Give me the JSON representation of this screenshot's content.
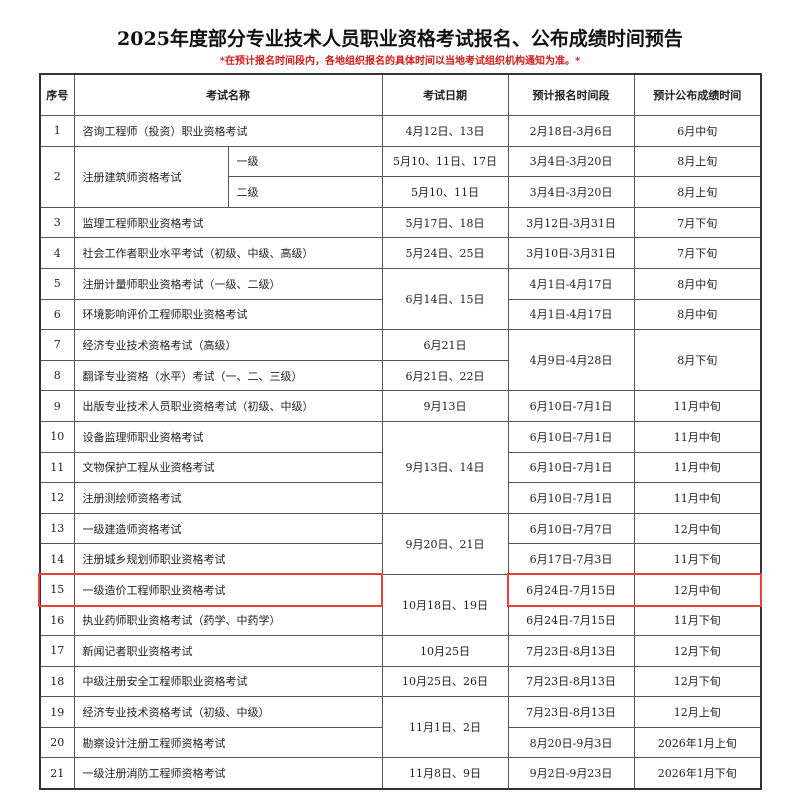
{
  "title": "2025年度部分专业技术人员职业资格考试报名、公布成绩时间预告",
  "note": "*在预计报名时间段内，各地组织报名的具体时间以当地考试组织机构通知为准。*",
  "highlight_color": "#e8403a",
  "headers": {
    "no": "序号",
    "name": "考试名称",
    "date": "考试日期",
    "reg": "预计报名时间段",
    "result": "预计公布成绩时间"
  },
  "rows": [
    {
      "no": "1",
      "name": "咨询工程师（投资）职业资格考试",
      "level": "",
      "date": "4月12日、13日",
      "reg": "2月18日-3月6日",
      "result": "6月中旬"
    },
    {
      "no": "2",
      "name": "注册建筑师资格考试",
      "level": "一级",
      "date": "5月10、11日、17日",
      "reg": "3月4日-3月20日",
      "result": "8月上旬"
    },
    {
      "no": null,
      "name": null,
      "level": "二级",
      "date": "5月10、11日",
      "reg": "3月4日-3月20日",
      "result": "8月上旬"
    },
    {
      "no": "3",
      "name": "监理工程师职业资格考试",
      "level": "",
      "date": "5月17日、18日",
      "reg": "3月12日-3月31日",
      "result": "7月下旬"
    },
    {
      "no": "4",
      "name": "社会工作者职业水平考试（初级、中级、高级）",
      "level": "",
      "date": "5月24日、25日",
      "reg": "3月10日-3月31日",
      "result": "7月下旬"
    },
    {
      "no": "5",
      "name": "注册计量师职业资格考试（一级、二级）",
      "level": "",
      "date": "6月14日、15日",
      "reg": "4月1日-4月17日",
      "result": "8月中旬"
    },
    {
      "no": "6",
      "name": "环境影响评价工程师职业资格考试",
      "level": "",
      "date": null,
      "reg": "4月1日-4月17日",
      "result": "8月中旬"
    },
    {
      "no": "7",
      "name": "经济专业技术资格考试（高级）",
      "level": "",
      "date": "6月21日",
      "reg": "4月9日-4月28日",
      "result": "8月下旬"
    },
    {
      "no": "8",
      "name": "翻译专业资格（水平）考试（一、二、三级）",
      "level": "",
      "date": "6月21日、22日",
      "reg": null,
      "result": null
    },
    {
      "no": "9",
      "name": "出版专业技术人员职业资格考试（初级、中级）",
      "level": "",
      "date": "9月13日",
      "reg": "6月10日-7月1日",
      "result": "11月中旬"
    },
    {
      "no": "10",
      "name": "设备监理师职业资格考试",
      "level": "",
      "date": "9月13日、14日",
      "reg": "6月10日-7月1日",
      "result": "11月中旬"
    },
    {
      "no": "11",
      "name": "文物保护工程从业资格考试",
      "level": "",
      "date": null,
      "reg": "6月10日-7月1日",
      "result": "11月中旬"
    },
    {
      "no": "12",
      "name": "注册测绘师资格考试",
      "level": "",
      "date": null,
      "reg": "6月10日-7月1日",
      "result": "11月中旬"
    },
    {
      "no": "13",
      "name": "一级建造师资格考试",
      "level": "",
      "date": "9月20日、21日",
      "reg": "6月10日-7月7日",
      "result": "12月中旬"
    },
    {
      "no": "14",
      "name": "注册城乡规划师职业资格考试",
      "level": "",
      "date": null,
      "reg": "6月17日-7月3日",
      "result": "11月下旬"
    },
    {
      "no": "15",
      "name": "一级造价工程师职业资格考试",
      "level": "",
      "date": "10月18日、19日",
      "reg": "6月24日-7月15日",
      "result": "12月中旬"
    },
    {
      "no": "16",
      "name": "执业药师职业资格考试（药学、中药学）",
      "level": "",
      "date": null,
      "reg": "6月24日-7月15日",
      "result": "11月下旬"
    },
    {
      "no": "17",
      "name": "新闻记者职业资格考试",
      "level": "",
      "date": "10月25日",
      "reg": "7月23日-8月13日",
      "result": "12月下旬"
    },
    {
      "no": "18",
      "name": "中级注册安全工程师职业资格考试",
      "level": "",
      "date": "10月25日、26日",
      "reg": "7月23日-8月13日",
      "result": "12月下旬"
    },
    {
      "no": "19",
      "name": "经济专业技术资格考试（初级、中级）",
      "level": "",
      "date": "11月1日、2日",
      "reg": "7月23日-8月13日",
      "result": "12月上旬"
    },
    {
      "no": "20",
      "name": "勘察设计注册工程师资格考试",
      "level": "",
      "date": null,
      "reg": "8月20日-9月3日",
      "result": "2026年1月上旬"
    },
    {
      "no": "21",
      "name": "一级注册消防工程师资格考试",
      "level": "",
      "date": "11月8日、9日",
      "reg": "9月2日-9月23日",
      "result": "2026年1月下旬"
    }
  ]
}
